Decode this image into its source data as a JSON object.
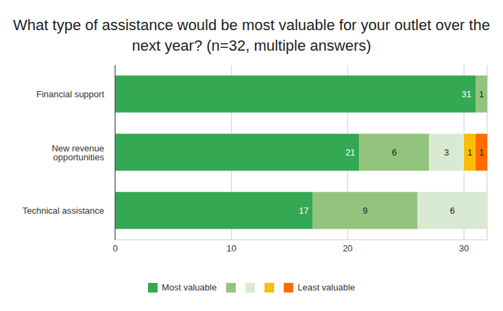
{
  "chart_data": {
    "type": "bar",
    "title": "What type of assistance would be most valuable for your outlet over the next year? (n=32, multiple answers)",
    "orientation": "horizontal",
    "stacked": true,
    "data_labels": true,
    "grid": true,
    "legend": "bottom",
    "categories": [
      "Financial support",
      "New revenue opportunities",
      "Technical assistance"
    ],
    "series": [
      {
        "name": "Most valuable",
        "color": "#34a853",
        "values": [
          31,
          21,
          17
        ]
      },
      {
        "name": null,
        "color": "#93c47d",
        "values": [
          1,
          6,
          9
        ]
      },
      {
        "name": null,
        "color": "#d9ead3",
        "values": [
          null,
          3,
          6
        ]
      },
      {
        "name": null,
        "color": "#fbbc04",
        "values": [
          null,
          1,
          null
        ]
      },
      {
        "name": "Least valuable",
        "color": "#ff6d01",
        "values": [
          null,
          1,
          null
        ]
      }
    ],
    "xlim": [
      0,
      32
    ],
    "xticks": [
      0,
      10,
      20,
      30
    ]
  }
}
